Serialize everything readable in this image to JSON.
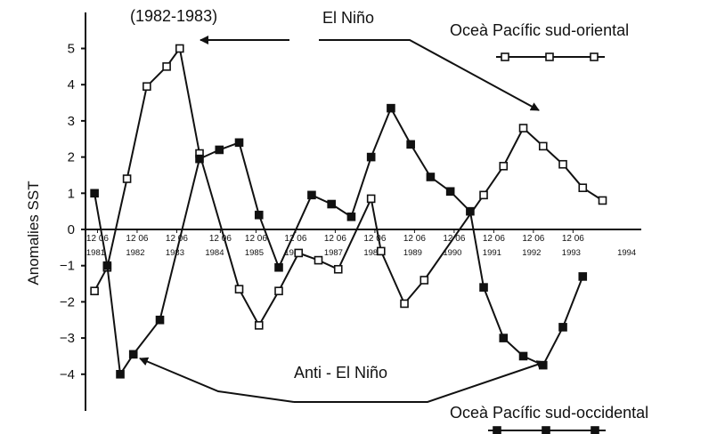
{
  "chart_data": {
    "type": "line",
    "ylabel": "Anomalies SST",
    "ylim": [
      -5,
      5
    ],
    "yticks": [
      -4,
      -3,
      -2,
      -1,
      0,
      1,
      2,
      3,
      4,
      5
    ],
    "xlim": [
      1980.9,
      1994.7
    ],
    "x_month_labels": [
      {
        "x": 1981.0,
        "text": "12 06"
      },
      {
        "x": 1982.0,
        "text": "12 06"
      },
      {
        "x": 1983.0,
        "text": "12 06"
      },
      {
        "x": 1984.1,
        "text": "12 06"
      },
      {
        "x": 1985.0,
        "text": "12 06"
      },
      {
        "x": 1986.0,
        "text": "12 06"
      },
      {
        "x": 1987.0,
        "text": "12 06"
      },
      {
        "x": 1988.0,
        "text": "12 06"
      },
      {
        "x": 1989.0,
        "text": "12 06"
      },
      {
        "x": 1990.0,
        "text": "12 06"
      },
      {
        "x": 1991.0,
        "text": "12 06"
      },
      {
        "x": 1992.0,
        "text": "12 06"
      },
      {
        "x": 1993.0,
        "text": "12 06"
      }
    ],
    "x_year_labels": [
      {
        "x": 1981.0,
        "text": "1981"
      },
      {
        "x": 1982.0,
        "text": "1982"
      },
      {
        "x": 1983.0,
        "text": "1983"
      },
      {
        "x": 1984.0,
        "text": "1984"
      },
      {
        "x": 1985.0,
        "text": "1985"
      },
      {
        "x": 1986.0,
        "text": "1986"
      },
      {
        "x": 1987.0,
        "text": "1987"
      },
      {
        "x": 1988.0,
        "text": "1988"
      },
      {
        "x": 1989.0,
        "text": "1989"
      },
      {
        "x": 1990.0,
        "text": "1990"
      },
      {
        "x": 1991.0,
        "text": "1991"
      },
      {
        "x": 1992.0,
        "text": "1992"
      },
      {
        "x": 1993.0,
        "text": "1993"
      },
      {
        "x": 1994.4,
        "text": "1994"
      }
    ],
    "series": [
      {
        "name": "Oceà Pacífic sud-oriental",
        "marker": "open-square",
        "points": [
          [
            1980.97,
            -1.7
          ],
          [
            1981.29,
            -1.05
          ],
          [
            1981.79,
            1.4
          ],
          [
            1982.29,
            3.95
          ],
          [
            1982.79,
            4.5
          ],
          [
            1983.12,
            5.0
          ],
          [
            1983.62,
            2.1
          ],
          [
            1984.62,
            -1.65
          ],
          [
            1985.12,
            -2.65
          ],
          [
            1985.62,
            -1.7
          ],
          [
            1986.12,
            -0.65
          ],
          [
            1986.62,
            -0.85
          ],
          [
            1987.12,
            -1.1
          ],
          [
            1987.95,
            0.85
          ],
          [
            1988.2,
            -0.6
          ],
          [
            1988.79,
            -2.05
          ],
          [
            1989.29,
            -1.4
          ],
          [
            1990.79,
            0.95
          ],
          [
            1991.29,
            1.75
          ],
          [
            1991.79,
            2.8
          ],
          [
            1992.29,
            2.3
          ],
          [
            1992.79,
            1.8
          ],
          [
            1993.29,
            1.15
          ],
          [
            1993.79,
            0.8
          ]
        ]
      },
      {
        "name": "Oceà Pacífic sud-occidental",
        "marker": "filled-square",
        "points": [
          [
            1980.97,
            1.0
          ],
          [
            1981.29,
            -1.0
          ],
          [
            1981.62,
            -4.0
          ],
          [
            1981.95,
            -3.45
          ],
          [
            1982.62,
            -2.5
          ],
          [
            1983.62,
            1.95
          ],
          [
            1984.12,
            2.2
          ],
          [
            1984.62,
            2.4
          ],
          [
            1985.12,
            0.4
          ],
          [
            1985.62,
            -1.05
          ],
          [
            1986.45,
            0.95
          ],
          [
            1986.95,
            0.7
          ],
          [
            1987.45,
            0.35
          ],
          [
            1987.95,
            2.0
          ],
          [
            1988.45,
            3.35
          ],
          [
            1988.95,
            2.35
          ],
          [
            1989.45,
            1.45
          ],
          [
            1989.95,
            1.05
          ],
          [
            1990.45,
            0.5
          ],
          [
            1990.79,
            -1.6
          ],
          [
            1991.29,
            -3.0
          ],
          [
            1991.79,
            -3.5
          ],
          [
            1992.29,
            -3.75
          ],
          [
            1992.79,
            -2.7
          ],
          [
            1993.29,
            -1.3
          ]
        ]
      }
    ],
    "annotations": {
      "el_nino_years": "(1982-1983)",
      "el_nino": "El Niño",
      "anti_el_nino": "Anti - El Niño"
    },
    "colors": {
      "line": "#111111",
      "background": "#ffffff"
    }
  }
}
